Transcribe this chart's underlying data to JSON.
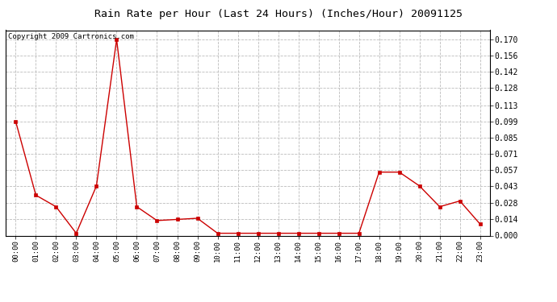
{
  "title": "Rain Rate per Hour (Last 24 Hours) (Inches/Hour) 20091125",
  "copyright": "Copyright 2009 Cartronics.com",
  "hours": [
    "00:00",
    "01:00",
    "02:00",
    "03:00",
    "04:00",
    "05:00",
    "06:00",
    "07:00",
    "08:00",
    "09:00",
    "10:00",
    "11:00",
    "12:00",
    "13:00",
    "14:00",
    "15:00",
    "16:00",
    "17:00",
    "18:00",
    "19:00",
    "20:00",
    "21:00",
    "22:00",
    "23:00"
  ],
  "values": [
    0.099,
    0.035,
    0.025,
    0.002,
    0.043,
    0.17,
    0.025,
    0.013,
    0.014,
    0.015,
    0.002,
    0.002,
    0.002,
    0.002,
    0.002,
    0.002,
    0.002,
    0.002,
    0.055,
    0.055,
    0.043,
    0.025,
    0.03,
    0.01
  ],
  "line_color": "#cc0000",
  "marker": "s",
  "marker_size": 2.5,
  "background_color": "#ffffff",
  "grid_color": "#bbbbbb",
  "yticks": [
    0.0,
    0.014,
    0.028,
    0.043,
    0.057,
    0.071,
    0.085,
    0.099,
    0.113,
    0.128,
    0.142,
    0.156,
    0.17
  ],
  "ylim": [
    0.0,
    0.178
  ],
  "title_fontsize": 9.5,
  "copyright_fontsize": 6.5,
  "tick_fontsize": 6.5,
  "ytick_fontsize": 7.0
}
